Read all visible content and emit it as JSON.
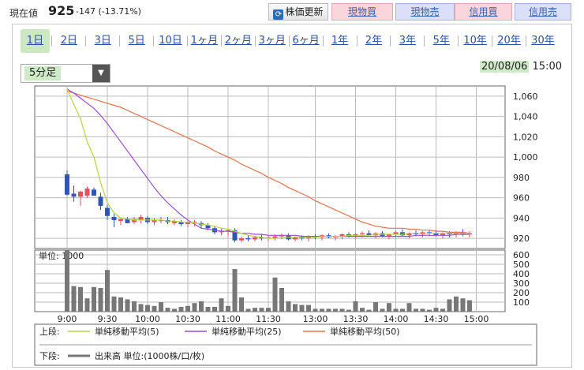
{
  "header": {
    "price_label": "現在値",
    "price": "925",
    "change": "-147 (-13.71%)",
    "buttons": {
      "refresh": "株価更新",
      "spot_buy": "現物買",
      "spot_sell": "現物売",
      "margin_buy": "信用買",
      "margin_sell": "信用売"
    }
  },
  "tabs": [
    "1日",
    "2日",
    "3日",
    "5日",
    "10日",
    "1ヶ月",
    "2ヶ月",
    "3ヶ月",
    "6ヶ月",
    "1年",
    "2年",
    "3年",
    "5年",
    "10年",
    "20年",
    "30年"
  ],
  "active_tab": "1日",
  "interval": {
    "selected": "5分足"
  },
  "timestamp": {
    "date": "20/08/06",
    "time": "15:00"
  },
  "colors": {
    "up": "#e0525d",
    "down": "#2f55b8",
    "ma5": "#b5d53e",
    "ma25": "#9a4fd0",
    "ma50": "#e2724e",
    "volume": "#777777",
    "grid": "#bbbbbb"
  },
  "chart_data": {
    "type": "candlestick",
    "x": [
      "9:00",
      "9:05",
      "9:10",
      "9:15",
      "9:20",
      "9:25",
      "9:30",
      "9:35",
      "9:40",
      "9:45",
      "9:50",
      "9:55",
      "10:00",
      "10:05",
      "10:10",
      "10:15",
      "10:20",
      "10:25",
      "10:30",
      "10:35",
      "10:40",
      "10:45",
      "10:50",
      "10:55",
      "11:00",
      "11:05",
      "11:10",
      "11:15",
      "11:20",
      "11:25",
      "11:30",
      "12:30",
      "12:35",
      "12:40",
      "12:45",
      "12:50",
      "12:55",
      "13:00",
      "13:05",
      "13:10",
      "13:15",
      "13:20",
      "13:25",
      "13:30",
      "13:35",
      "13:40",
      "13:45",
      "13:50",
      "13:55",
      "14:00",
      "14:05",
      "14:10",
      "14:15",
      "14:20",
      "14:25",
      "14:30",
      "14:35",
      "14:40",
      "14:45",
      "14:50",
      "14:55"
    ],
    "x_tick_labels": [
      "9:00",
      "9:30",
      "10:00",
      "10:30",
      "11:00",
      "11:30",
      "13:00",
      "13:30",
      "14:00",
      "14:30",
      "15:00"
    ],
    "ohlc": [
      [
        983,
        987,
        962,
        963
      ],
      [
        964,
        972,
        956,
        961
      ],
      [
        961,
        967,
        952,
        966
      ],
      [
        962,
        971,
        960,
        969
      ],
      [
        968,
        970,
        962,
        962
      ],
      [
        961,
        965,
        948,
        952
      ],
      [
        950,
        953,
        938,
        942
      ],
      [
        941,
        944,
        931,
        938
      ],
      [
        937,
        940,
        933,
        939
      ],
      [
        939,
        941,
        935,
        935
      ],
      [
        936,
        941,
        934,
        939
      ],
      [
        938,
        943,
        935,
        941
      ],
      [
        940,
        942,
        934,
        936
      ],
      [
        936,
        940,
        933,
        938
      ],
      [
        937,
        941,
        935,
        938
      ],
      [
        938,
        941,
        934,
        936
      ],
      [
        935,
        939,
        933,
        937
      ],
      [
        936,
        938,
        932,
        934
      ],
      [
        934,
        937,
        931,
        936
      ],
      [
        935,
        938,
        932,
        936
      ],
      [
        935,
        937,
        930,
        933
      ],
      [
        933,
        935,
        928,
        930
      ],
      [
        930,
        932,
        924,
        926
      ],
      [
        926,
        930,
        923,
        927
      ],
      [
        927,
        929,
        922,
        928
      ],
      [
        928,
        930,
        916,
        918
      ],
      [
        918,
        922,
        916,
        920
      ],
      [
        920,
        923,
        917,
        919
      ],
      [
        919,
        922,
        917,
        921
      ],
      [
        921,
        924,
        918,
        920
      ],
      [
        920,
        923,
        917,
        921
      ],
      [
        920,
        924,
        918,
        922
      ],
      [
        922,
        925,
        919,
        923
      ],
      [
        923,
        925,
        918,
        919
      ],
      [
        919,
        922,
        917,
        921
      ],
      [
        921,
        923,
        918,
        920
      ],
      [
        920,
        923,
        917,
        922
      ],
      [
        922,
        924,
        919,
        921
      ],
      [
        921,
        924,
        918,
        923
      ],
      [
        923,
        925,
        920,
        921
      ],
      [
        921,
        923,
        918,
        922
      ],
      [
        922,
        925,
        919,
        924
      ],
      [
        924,
        926,
        921,
        922
      ],
      [
        922,
        925,
        920,
        924
      ],
      [
        924,
        927,
        921,
        925
      ],
      [
        925,
        928,
        922,
        923
      ],
      [
        923,
        926,
        920,
        925
      ],
      [
        925,
        927,
        921,
        922
      ],
      [
        922,
        925,
        919,
        924
      ],
      [
        924,
        927,
        921,
        926
      ],
      [
        926,
        929,
        922,
        923
      ],
      [
        923,
        926,
        920,
        925
      ],
      [
        925,
        928,
        922,
        924
      ],
      [
        924,
        927,
        921,
        926
      ],
      [
        926,
        928,
        922,
        925
      ],
      [
        925,
        928,
        922,
        923
      ],
      [
        923,
        926,
        920,
        925
      ],
      [
        925,
        927,
        921,
        924
      ],
      [
        924,
        927,
        921,
        926
      ],
      [
        926,
        929,
        922,
        924
      ],
      [
        924,
        927,
        921,
        925
      ]
    ],
    "ma5": [
      1067,
      1052,
      1038,
      1015,
      1000,
      975,
      955,
      945,
      940,
      939,
      938,
      938,
      938,
      938,
      938,
      937,
      937,
      936,
      936,
      935,
      934,
      933,
      932,
      930,
      929,
      927,
      925,
      923,
      922,
      921,
      920,
      920,
      921,
      921,
      921,
      921,
      921,
      921,
      922,
      922,
      922,
      922,
      923,
      923,
      923,
      923,
      924,
      924,
      924,
      924,
      924,
      925,
      925,
      925,
      925,
      925,
      925,
      925,
      925,
      925,
      925
    ],
    "ma25": [
      1067,
      1063,
      1058,
      1053,
      1048,
      1041,
      1033,
      1024,
      1015,
      1006,
      997,
      988,
      979,
      970,
      962,
      955,
      949,
      943,
      938,
      934,
      930,
      929,
      928,
      927,
      927,
      926,
      925,
      925,
      924,
      924,
      923,
      923,
      923,
      923,
      923,
      922,
      922,
      922,
      922,
      922,
      922,
      922,
      922,
      922,
      922,
      922,
      922,
      922,
      922,
      922,
      922,
      922,
      923,
      923,
      923,
      923,
      923,
      923,
      924,
      924,
      924
    ],
    "ma50": [
      1065,
      1063,
      1061,
      1059,
      1057,
      1055,
      1053,
      1051,
      1049,
      1046,
      1043,
      1040,
      1037,
      1034,
      1031,
      1028,
      1025,
      1022,
      1019,
      1016,
      1013,
      1010,
      1006,
      1003,
      1000,
      997,
      993,
      990,
      987,
      984,
      980,
      977,
      974,
      970,
      967,
      964,
      961,
      957,
      954,
      951,
      948,
      945,
      942,
      939,
      936,
      934,
      932,
      931,
      930,
      930,
      930,
      929,
      929,
      928,
      928,
      927,
      927,
      926,
      926,
      926,
      925
    ],
    "volume": [
      1000,
      270,
      260,
      140,
      260,
      250,
      440,
      160,
      150,
      130,
      110,
      80,
      70,
      60,
      100,
      40,
      30,
      50,
      60,
      90,
      110,
      50,
      50,
      140,
      60,
      450,
      150,
      30,
      40,
      40,
      40,
      360,
      250,
      110,
      80,
      70,
      70,
      30,
      30,
      30,
      30,
      30,
      20,
      110,
      40,
      20,
      100,
      30,
      90,
      30,
      30,
      90,
      30,
      30,
      20,
      40,
      30,
      130,
      160,
      140,
      120
    ],
    "y_ticks": [
      920,
      940,
      960,
      980,
      1000,
      1020,
      1040,
      1060
    ],
    "ylim": [
      910,
      1070
    ],
    "volume_ticks": [
      100,
      200,
      300,
      400,
      500,
      600
    ],
    "volume_ylim": [
      0,
      650
    ],
    "volume_unit_label": "単位: 1000",
    "legend": {
      "upper_label": "上段:",
      "lower_label": "下段:",
      "ma5": "単純移動平均(5)",
      "ma25": "単純移動平均(25)",
      "ma50": "単純移動平均(50)",
      "volume": "出来高 単位:(1000株/口/枚)"
    }
  }
}
